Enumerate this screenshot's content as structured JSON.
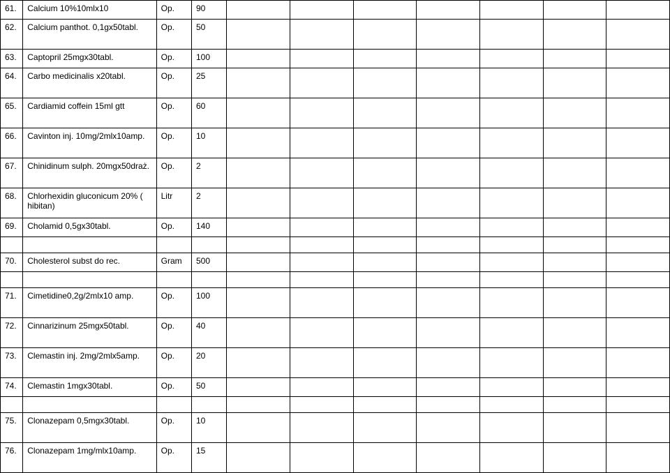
{
  "table": {
    "columns": [
      "num",
      "name",
      "unit",
      "qty",
      "b1",
      "b2",
      "b3",
      "b4",
      "b5",
      "b6",
      "b7"
    ],
    "column_classes": [
      "col-num",
      "col-name",
      "col-unit",
      "col-qty",
      "col-b1",
      "col-b2",
      "col-b3",
      "col-b4",
      "col-b5",
      "col-b6",
      "col-b7"
    ],
    "border_color": "#000000",
    "background_color": "#ffffff",
    "text_color": "#000000",
    "font_size_pt": 9,
    "rows": [
      {
        "num": "61.",
        "name": "Calcium 10%10mlx10",
        "unit": "Op.",
        "qty": "90",
        "tall": false
      },
      {
        "num": "62.",
        "name": "Calcium panthot. 0,1gx50tabl.",
        "unit": "Op.",
        "qty": "50",
        "tall": true
      },
      {
        "num": "63.",
        "name": "Captopril 25mgx30tabl.",
        "unit": "Op.",
        "qty": "100",
        "tall": false
      },
      {
        "num": "64.",
        "name": "Carbo medicinalis x20tabl.",
        "unit": "Op.",
        "qty": "25",
        "tall": true
      },
      {
        "num": "65.",
        "name": "Cardiamid coffein 15ml gtt",
        "unit": "Op.",
        "qty": "60",
        "tall": true
      },
      {
        "num": "66.",
        "name": "Cavinton  inj. 10mg/2mlx10amp.",
        "unit": "Op.",
        "qty": "10",
        "tall": true
      },
      {
        "num": "67.",
        "name": "Chinidinum sulph. 20mgx50draż.",
        "unit": "Op.",
        "qty": "2",
        "tall": true
      },
      {
        "num": "68.",
        "name": "Chlorhexidin gluconicum 20% ( hibitan)",
        "unit": "Litr",
        "qty": "2",
        "tall": true
      },
      {
        "num": "69.",
        "name": "Cholamid 0,5gx30tabl.",
        "unit": "Op.",
        "qty": "140",
        "tall": false
      },
      {
        "num": "70.",
        "name": "Cholesterol subst do rec.",
        "unit": "Gram",
        "qty": "500",
        "tall": false
      },
      {
        "num": "71.",
        "name": "Cimetidine0,2g/2mlx10 amp.",
        "unit": "Op.",
        "qty": "100",
        "tall": true
      },
      {
        "num": "72.",
        "name": "Cinnarizinum 25mgx50tabl.",
        "unit": "Op.",
        "qty": "40",
        "tall": true
      },
      {
        "num": "73.",
        "name": "Clemastin inj. 2mg/2mlx5amp.",
        "unit": "Op.",
        "qty": "20",
        "tall": true
      },
      {
        "num": "74.",
        "name": "Clemastin 1mgx30tabl.",
        "unit": "Op.",
        "qty": "50",
        "tall": false
      },
      {
        "num": "75.",
        "name": "Clonazepam 0,5mgx30tabl.",
        "unit": "Op.",
        "qty": "10",
        "tall": true
      },
      {
        "num": "76.",
        "name": "Clonazepam 1mg/mlx10amp.",
        "unit": "Op.",
        "qty": "15",
        "tall": true
      }
    ],
    "group_separators_after_index": [
      8,
      9,
      13
    ]
  }
}
